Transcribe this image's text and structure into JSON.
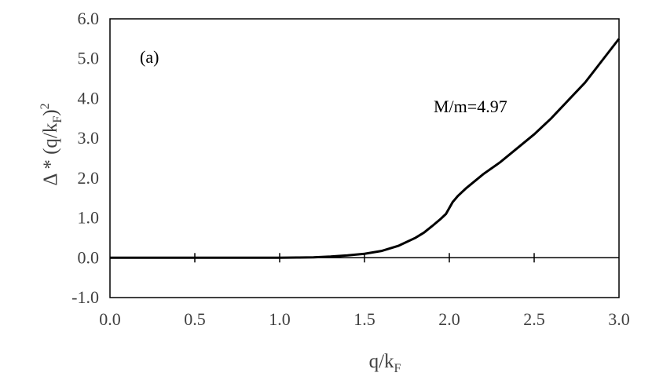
{
  "chart_data": {
    "type": "line",
    "title": "",
    "panel_label": "(a)",
    "annotation": "M/m=4.97",
    "xlabel": {
      "base": "q/k",
      "subscript": "F"
    },
    "ylabel": {
      "prefix": "Δ * (q/k",
      "subscript": "F",
      "close": ")",
      "superscript": "2"
    },
    "xlim": [
      0.0,
      3.0
    ],
    "ylim": [
      -1.0,
      6.0
    ],
    "x_ticks": [
      "0.0",
      "0.5",
      "1.0",
      "1.5",
      "2.0",
      "2.5",
      "3.0"
    ],
    "y_ticks": [
      "-1.0",
      "0.0",
      "1.0",
      "2.0",
      "3.0",
      "4.0",
      "5.0",
      "6.0"
    ],
    "grid": false,
    "colors": {
      "line": "#000000",
      "axis": "#000000",
      "tick_text": "#404040"
    },
    "series": [
      {
        "x": [
          0.0,
          0.5,
          1.0,
          1.1,
          1.2,
          1.3,
          1.4,
          1.5,
          1.6,
          1.7,
          1.8,
          1.85,
          1.9,
          1.95,
          1.98,
          2.0,
          2.02,
          2.05,
          2.1,
          2.2,
          2.3,
          2.4,
          2.5,
          2.6,
          2.7,
          2.8,
          2.9,
          3.0
        ],
        "y": [
          0.0,
          0.0,
          0.0,
          0.005,
          0.01,
          0.03,
          0.06,
          0.1,
          0.17,
          0.3,
          0.5,
          0.63,
          0.8,
          0.98,
          1.1,
          1.25,
          1.4,
          1.55,
          1.75,
          2.1,
          2.4,
          2.75,
          3.1,
          3.5,
          3.95,
          4.4,
          4.95,
          5.5
        ]
      }
    ]
  }
}
